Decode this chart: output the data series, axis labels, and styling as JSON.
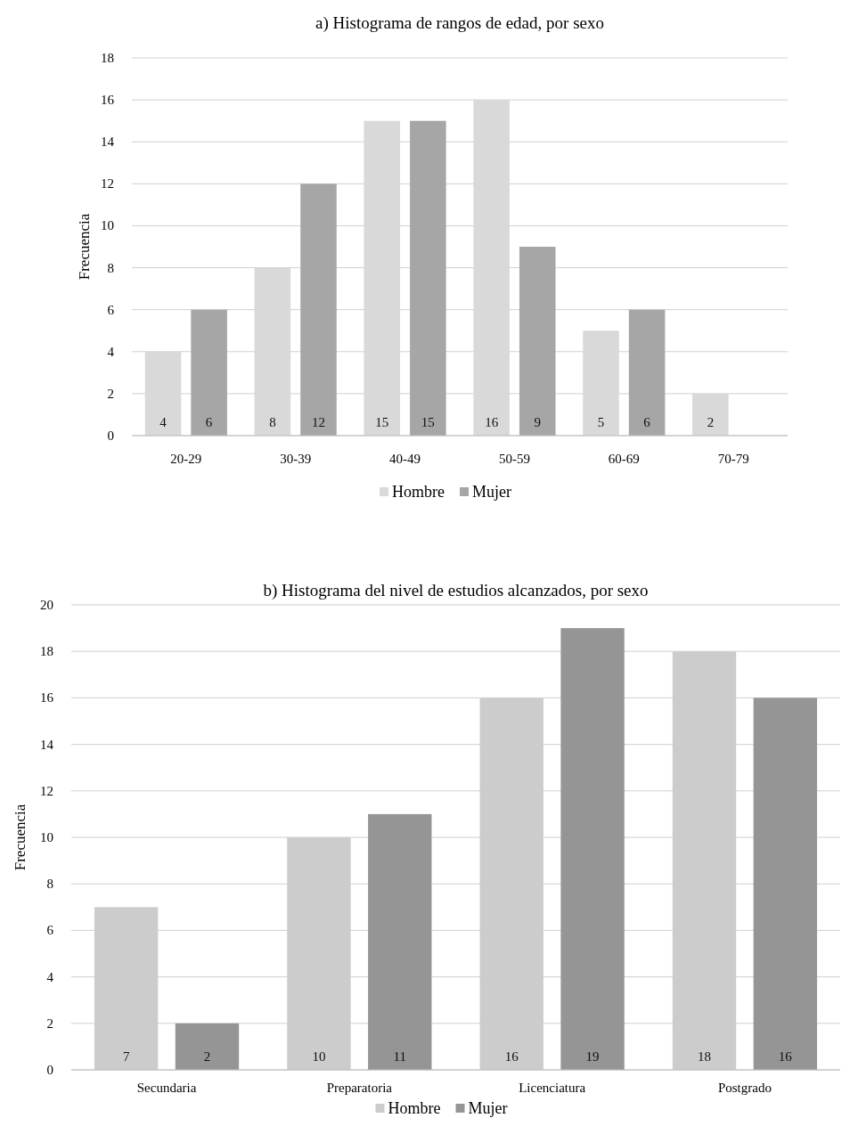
{
  "chart_data": [
    {
      "type": "bar",
      "title": "a)  Histograma de rangos de edad, por sexo",
      "ylabel": "Frecuencia",
      "categories": [
        "20-29",
        "30-39",
        "40-49",
        "50-59",
        "60-69",
        "70-79"
      ],
      "series": [
        {
          "name": "Hombre",
          "color": "#d9d9d9",
          "values": [
            4,
            8,
            15,
            16,
            5,
            2
          ]
        },
        {
          "name": "Mujer",
          "color": "#a6a6a6",
          "values": [
            6,
            12,
            15,
            9,
            6,
            null
          ]
        }
      ],
      "ylim": [
        0,
        18
      ],
      "yticks": [
        0,
        2,
        4,
        6,
        8,
        10,
        12,
        14,
        16,
        18
      ],
      "grid": "y",
      "legend": "bottom",
      "data_labels": true
    },
    {
      "type": "bar",
      "title": "b)  Histograma del nivel de estudios alcanzados, por sexo",
      "ylabel": "Frecuencia",
      "categories": [
        "Secundaria",
        "Preparatoria",
        "Licenciatura",
        "Postgrado"
      ],
      "series": [
        {
          "name": "Hombre",
          "color": "#cccccc",
          "values": [
            7,
            10,
            16,
            18
          ]
        },
        {
          "name": "Mujer",
          "color": "#959595",
          "values": [
            2,
            11,
            19,
            16
          ]
        }
      ],
      "ylim": [
        0,
        20
      ],
      "yticks": [
        0,
        2,
        4,
        6,
        8,
        10,
        12,
        14,
        16,
        18,
        20
      ],
      "grid": "y",
      "legend": "bottom",
      "data_labels": true
    }
  ]
}
